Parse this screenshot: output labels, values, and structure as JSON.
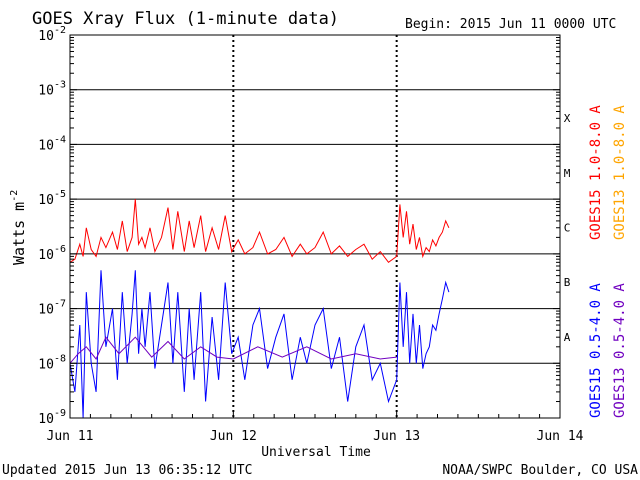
{
  "chart_data": {
    "type": "line",
    "title": "GOES Xray Flux (1-minute data)",
    "begin": "Begin:  2015 Jun 11 0000 UTC",
    "xlabel": "Universal Time",
    "ylabel_main": "Watts m",
    "ylabel_sup": "-2",
    "x_tick_labels": [
      "Jun 11",
      "Jun 12",
      "Jun 13",
      "Jun 14"
    ],
    "xlim_days": [
      0,
      3
    ],
    "y_scale": "log",
    "ylim": [
      1e-09,
      0.01
    ],
    "y_tick_labels": [
      {
        "base": "10",
        "exp": "-9"
      },
      {
        "base": "10",
        "exp": "-8"
      },
      {
        "base": "10",
        "exp": "-7"
      },
      {
        "base": "10",
        "exp": "-6"
      },
      {
        "base": "10",
        "exp": "-5"
      },
      {
        "base": "10",
        "exp": "-4"
      },
      {
        "base": "10",
        "exp": "-3"
      },
      {
        "base": "10",
        "exp": "-2"
      }
    ],
    "flare_classes": [
      "A",
      "B",
      "C",
      "M",
      "X"
    ],
    "legend": {
      "goes15_long": "GOES15 1.0-8.0 A",
      "goes13_long": "GOES13 1.0-8.0 A",
      "goes15_short": "GOES15 0.5-4.0 A",
      "goes13_short": "GOES13 0.5-4.0 A"
    },
    "colors": {
      "goes15_long": "#ff0000",
      "goes13_long": "#ffa500",
      "goes15_short": "#0000ff",
      "goes13_short": "#7000c0",
      "grid": "#000000"
    },
    "series": [
      {
        "name": "GOES15 1.0-8.0 A",
        "key": "goes15_long",
        "x": [
          0.0,
          0.03,
          0.06,
          0.08,
          0.1,
          0.13,
          0.16,
          0.19,
          0.22,
          0.26,
          0.29,
          0.32,
          0.35,
          0.38,
          0.4,
          0.42,
          0.44,
          0.46,
          0.49,
          0.52,
          0.56,
          0.6,
          0.63,
          0.66,
          0.7,
          0.73,
          0.76,
          0.8,
          0.83,
          0.87,
          0.91,
          0.95,
          0.99,
          1.03,
          1.07,
          1.12,
          1.16,
          1.21,
          1.26,
          1.31,
          1.36,
          1.41,
          1.45,
          1.5,
          1.55,
          1.6,
          1.65,
          1.7,
          1.75,
          1.8,
          1.85,
          1.9,
          1.95,
          2.0,
          2.02,
          2.04,
          2.06,
          2.08,
          2.1,
          2.12,
          2.14,
          2.16,
          2.18,
          2.2,
          2.22,
          2.24,
          2.26,
          2.28,
          2.3,
          2.32
        ],
        "y": [
          7e-07,
          8e-07,
          1.5e-06,
          9e-07,
          3e-06,
          1.2e-06,
          9e-07,
          2e-06,
          1.3e-06,
          2.5e-06,
          1.2e-06,
          4e-06,
          1.1e-06,
          2e-06,
          1e-05,
          1.5e-06,
          2e-06,
          1.3e-06,
          3e-06,
          1.1e-06,
          2e-06,
          7e-06,
          1.2e-06,
          6e-06,
          1.1e-06,
          4e-06,
          1.3e-06,
          5e-06,
          1.1e-06,
          3e-06,
          1.2e-06,
          5e-06,
          1.1e-06,
          1.8e-06,
          1e-06,
          1.3e-06,
          2.5e-06,
          1e-06,
          1.2e-06,
          2e-06,
          9e-07,
          1.5e-06,
          1e-06,
          1.3e-06,
          2.5e-06,
          1e-06,
          1.4e-06,
          9e-07,
          1.2e-06,
          1.5e-06,
          8e-07,
          1.1e-06,
          7e-07,
          9e-07,
          8e-06,
          2e-06,
          6e-06,
          1.5e-06,
          3.5e-06,
          1.2e-06,
          2e-06,
          9e-07,
          1.3e-06,
          1.1e-06,
          1.8e-06,
          1.4e-06,
          2e-06,
          2.5e-06,
          4e-06,
          3e-06
        ]
      },
      {
        "name": "GOES15 0.5-4.0 A",
        "key": "goes15_short",
        "x": [
          0.0,
          0.03,
          0.06,
          0.08,
          0.1,
          0.13,
          0.16,
          0.19,
          0.22,
          0.26,
          0.29,
          0.32,
          0.35,
          0.38,
          0.4,
          0.42,
          0.44,
          0.46,
          0.49,
          0.52,
          0.56,
          0.6,
          0.63,
          0.66,
          0.7,
          0.73,
          0.76,
          0.8,
          0.83,
          0.87,
          0.91,
          0.95,
          0.99,
          1.03,
          1.07,
          1.12,
          1.16,
          1.21,
          1.26,
          1.31,
          1.36,
          1.41,
          1.45,
          1.5,
          1.55,
          1.6,
          1.65,
          1.7,
          1.75,
          1.8,
          1.85,
          1.9,
          1.95,
          2.0,
          2.02,
          2.04,
          2.06,
          2.08,
          2.1,
          2.12,
          2.14,
          2.16,
          2.18,
          2.2,
          2.22,
          2.24,
          2.26,
          2.28,
          2.3,
          2.32
        ],
        "y": [
          1e-08,
          3e-09,
          5e-08,
          1e-09,
          2e-07,
          1e-08,
          3e-09,
          5e-07,
          2e-08,
          1e-07,
          5e-09,
          2e-07,
          1e-08,
          8e-08,
          5e-07,
          1.5e-08,
          1e-07,
          2e-08,
          2e-07,
          8e-09,
          5e-08,
          3e-07,
          1e-08,
          2e-07,
          3e-09,
          1e-07,
          5e-09,
          2e-07,
          2e-09,
          7e-08,
          5e-09,
          3e-07,
          1.5e-08,
          3e-08,
          5e-09,
          5e-08,
          1e-07,
          8e-09,
          3e-08,
          8e-08,
          5e-09,
          3e-08,
          1e-08,
          5e-08,
          1e-07,
          8e-09,
          3e-08,
          2e-09,
          2e-08,
          5e-08,
          5e-09,
          1e-08,
          2e-09,
          5e-09,
          3e-07,
          2e-08,
          2e-07,
          1e-08,
          8e-08,
          1e-08,
          5e-08,
          8e-09,
          1.5e-08,
          2e-08,
          5e-08,
          4e-08,
          8e-08,
          1.5e-07,
          3e-07,
          2e-07
        ]
      },
      {
        "name": "GOES13 0.5-4.0 A",
        "key": "goes13_short",
        "x": [
          0.0,
          0.05,
          0.1,
          0.16,
          0.22,
          0.3,
          0.4,
          0.5,
          0.6,
          0.7,
          0.8,
          0.9,
          1.0,
          1.15,
          1.3,
          1.45,
          1.6,
          1.75,
          1.9,
          2.0
        ],
        "y": [
          1e-08,
          1.5e-08,
          2e-08,
          1.2e-08,
          3e-08,
          1.5e-08,
          3e-08,
          1.3e-08,
          2.5e-08,
          1.2e-08,
          2e-08,
          1.3e-08,
          1.2e-08,
          2e-08,
          1.3e-08,
          2e-08,
          1.2e-08,
          1.5e-08,
          1.2e-08,
          1.3e-08
        ]
      }
    ]
  },
  "footer": {
    "updated": "Updated 2015 Jun 13 06:35:12 UTC",
    "source": "NOAA/SWPC Boulder, CO USA"
  }
}
